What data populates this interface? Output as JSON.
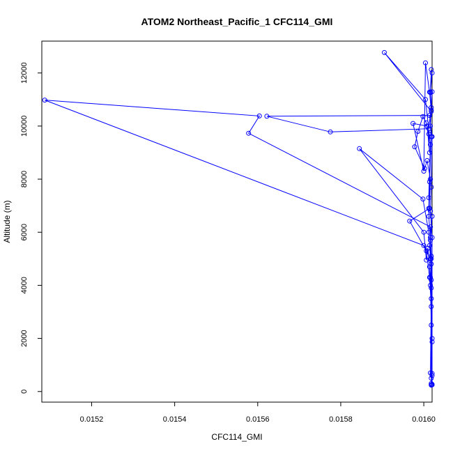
{
  "chart_data": {
    "type": "scatter",
    "title": "ATOM2 Northeast_Pacific_1 CFC114_GMI",
    "xlabel": "CFC114_GMI",
    "ylabel": "Altitude (m)",
    "xlim": [
      0.01508,
      0.01602
    ],
    "ylim": [
      -400,
      13200
    ],
    "xticks": [
      0.0152,
      0.0154,
      0.0156,
      0.0158,
      0.016
    ],
    "xtick_labels": [
      "0.0152",
      "0.0154",
      "0.0156",
      "0.0158",
      "0.0160"
    ],
    "yticks": [
      0,
      2000,
      4000,
      6000,
      8000,
      10000,
      12000
    ],
    "ytick_labels": [
      "0",
      "2000",
      "4000",
      "6000",
      "8000",
      "10000",
      "12000"
    ],
    "grid": false,
    "series": [
      {
        "color": "#0000ff",
        "marker": "open-circle",
        "points": [
          [
            0.016018,
            12130
          ],
          [
            0.016016,
            11280
          ],
          [
            0.01602,
            11290
          ],
          [
            0.016018,
            10600
          ],
          [
            0.016016,
            10000
          ],
          [
            0.016018,
            9600
          ],
          [
            0.016014,
            7900
          ],
          [
            0.016012,
            6900
          ],
          [
            0.01602,
            6600
          ],
          [
            0.016016,
            5700
          ],
          [
            0.016018,
            5000
          ],
          [
            0.016016,
            4300
          ],
          [
            0.016018,
            3900
          ],
          [
            0.01602,
            1870
          ],
          [
            0.01602,
            680
          ],
          [
            0.016018,
            250
          ],
          [
            0.016018,
            240
          ],
          [
            0.01602,
            600
          ],
          [
            0.016018,
            2500
          ],
          [
            0.016016,
            4000
          ],
          [
            0.016014,
            4700
          ],
          [
            0.01601,
            5400
          ],
          [
            0.016006,
            4950
          ],
          [
            0.016,
            6000
          ],
          [
            0.015845,
            9150
          ],
          [
            0.015998,
            7250
          ],
          [
            0.016012,
            6000
          ],
          [
            0.016014,
            5500
          ],
          [
            0.016016,
            5000
          ],
          [
            0.016018,
            4800
          ],
          [
            0.016018,
            500
          ],
          [
            0.016016,
            700
          ],
          [
            0.016018,
            3500
          ],
          [
            0.016016,
            5800
          ],
          [
            0.016012,
            6600
          ],
          [
            0.016016,
            8000
          ],
          [
            0.016008,
            8700
          ],
          [
            0.016002,
            8400
          ],
          [
            0.015978,
            9220
          ],
          [
            0.015986,
            9800
          ],
          [
            0.015998,
            10360
          ],
          [
            0.016006,
            10120
          ],
          [
            0.016012,
            9700
          ],
          [
            0.016014,
            9000
          ],
          [
            0.016008,
            10000
          ],
          [
            0.015974,
            10100
          ],
          [
            0.016,
            8300
          ],
          [
            0.016004,
            12380
          ],
          [
            0.016014,
            11280
          ],
          [
            0.016018,
            10550
          ],
          [
            0.015905,
            12770
          ],
          [
            0.016004,
            11000
          ],
          [
            0.016016,
            9300
          ],
          [
            0.016012,
            7300
          ],
          [
            0.016014,
            6900
          ],
          [
            0.015966,
            6420
          ],
          [
            0.016006,
            5300
          ],
          [
            0.016014,
            4300
          ],
          [
            0.016018,
            3200
          ],
          [
            0.01602,
            270
          ],
          [
            0.016018,
            5100
          ],
          [
            0.016016,
            6200
          ],
          [
            0.015578,
            9730
          ],
          [
            0.015604,
            10380
          ],
          [
            0.015087,
            10980
          ],
          [
            0.016,
            5500
          ],
          [
            0.016016,
            5000
          ],
          [
            0.016018,
            4200
          ],
          [
            0.01602,
            2000
          ],
          [
            0.016018,
            300
          ],
          [
            0.01602,
            250
          ],
          [
            0.01602,
            5800
          ],
          [
            0.016016,
            6800
          ],
          [
            0.016018,
            7700
          ],
          [
            0.01602,
            9600
          ],
          [
            0.016014,
            10400
          ],
          [
            0.015622,
            10370
          ],
          [
            0.015775,
            9780
          ],
          [
            0.016012,
            9900
          ],
          [
            0.016018,
            10700
          ],
          [
            0.016016,
            11260
          ],
          [
            0.01602,
            12000
          ]
        ]
      }
    ]
  }
}
